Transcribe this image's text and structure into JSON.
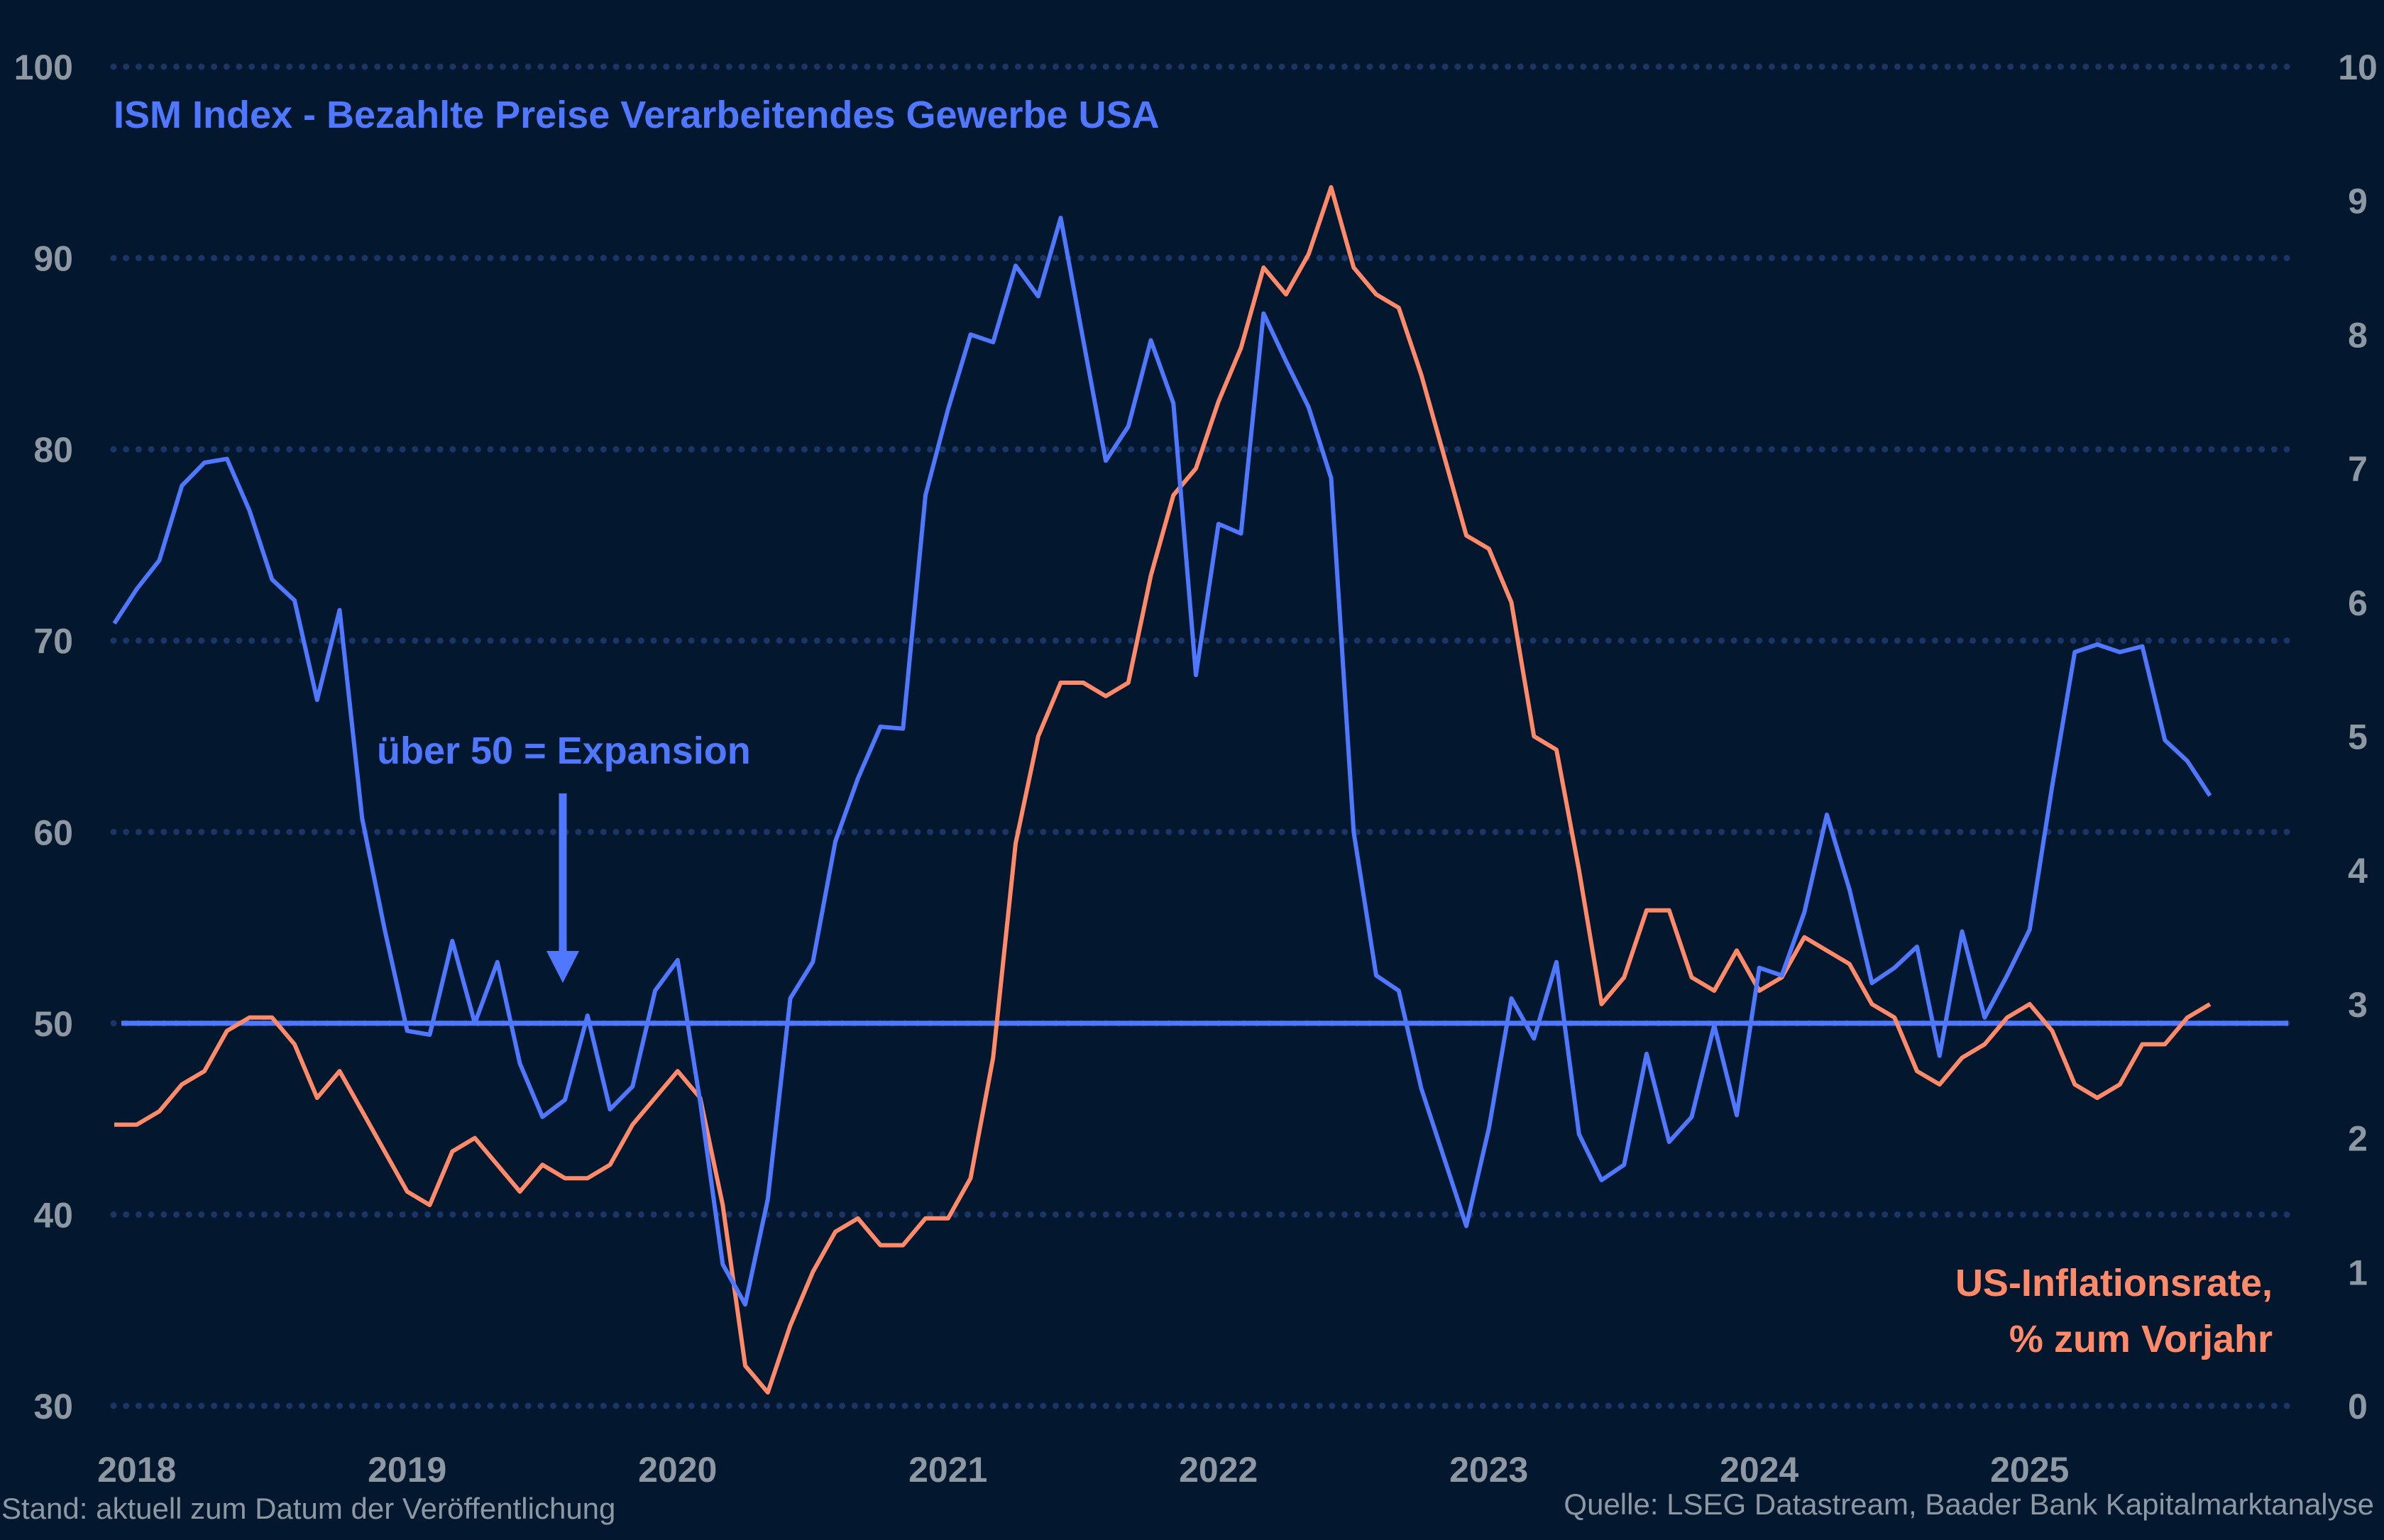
{
  "colors": {
    "background": "#03182f",
    "ism": "#4f78ff",
    "cpi": "#ff8a6a",
    "grid": "#1a3566",
    "ticks": "#8e98a3"
  },
  "title": "ISM Index - Bezahlte Preise Verarbeitendes Gewerbe USA",
  "annotation": "über 50 = Expansion",
  "cpi_label_line1": "US-Inflationsrate,",
  "cpi_label_line2": "% zum Vorjahr",
  "footer_left": "Stand: aktuell zum Datum der Veröffentlichung",
  "footer_right": "Quelle: LSEG Datastream, Baader Bank Kapitalmarktanalyse",
  "chart_data": {
    "type": "line",
    "x_start": "2017-12",
    "x_end": "2025-09",
    "frequency": "monthly",
    "x_tick_labels": [
      "2018",
      "2019",
      "2020",
      "2021",
      "2022",
      "2023",
      "2024",
      "2025"
    ],
    "y_left": {
      "range": [
        30,
        100
      ],
      "ticks": [
        "30",
        "40",
        "50",
        "60",
        "70",
        "80",
        "90",
        "100"
      ]
    },
    "y_right": {
      "range": [
        0,
        10
      ],
      "ticks": [
        "0",
        "1",
        "2",
        "3",
        "4",
        "5",
        "6",
        "7",
        "8",
        "9",
        "10"
      ]
    },
    "grid": "horizontal dotted",
    "reference_line": {
      "axis": "left",
      "value": 50
    },
    "series": [
      {
        "name": "ISM Index - Bezahlte Preise Verarbeitendes Gewerbe USA",
        "axis": "left",
        "values": [
          70.9,
          72.7,
          74.2,
          78.1,
          79.3,
          79.5,
          76.8,
          73.2,
          72.1,
          66.9,
          71.6,
          60.7,
          54.9,
          49.6,
          49.4,
          54.3,
          50.0,
          53.2,
          47.9,
          45.1,
          46.0,
          50.4,
          45.5,
          46.7,
          51.7,
          53.3,
          45.9,
          37.4,
          35.3,
          40.8,
          51.3,
          53.2,
          59.5,
          62.8,
          65.5,
          65.4,
          77.6,
          82.1,
          86.0,
          85.6,
          89.6,
          88.0,
          92.1,
          85.7,
          79.4,
          81.2,
          85.7,
          82.4,
          68.2,
          76.1,
          75.6,
          87.1,
          84.6,
          82.2,
          78.5,
          60.0,
          52.5,
          51.7,
          46.6,
          43.0,
          39.4,
          44.5,
          51.3,
          49.2,
          53.2,
          44.2,
          41.8,
          42.6,
          48.4,
          43.8,
          45.1,
          49.9,
          45.2,
          52.9,
          52.5,
          55.8,
          60.9,
          57.0,
          52.1,
          52.9,
          54.0,
          48.3,
          54.8,
          50.3,
          52.5,
          54.9,
          62.4,
          69.4,
          69.8,
          69.4,
          69.7,
          64.8,
          63.7,
          61.9
        ]
      },
      {
        "name": "US-Inflationsrate, % zum Vorjahr",
        "axis": "right",
        "values": [
          2.1,
          2.1,
          2.2,
          2.4,
          2.5,
          2.8,
          2.9,
          2.9,
          2.7,
          2.3,
          2.5,
          2.2,
          1.9,
          1.6,
          1.5,
          1.9,
          2.0,
          1.8,
          1.6,
          1.8,
          1.7,
          1.7,
          1.8,
          2.1,
          2.3,
          2.5,
          2.3,
          1.5,
          0.3,
          0.1,
          0.6,
          1.0,
          1.3,
          1.4,
          1.2,
          1.2,
          1.4,
          1.4,
          1.7,
          2.6,
          4.2,
          5.0,
          5.4,
          5.4,
          5.3,
          5.4,
          6.2,
          6.8,
          7.0,
          7.5,
          7.9,
          8.5,
          8.3,
          8.6,
          9.1,
          8.5,
          8.3,
          8.2,
          7.7,
          7.1,
          6.5,
          6.4,
          6.0,
          5.0,
          4.9,
          4.0,
          3.0,
          3.2,
          3.7,
          3.7,
          3.2,
          3.1,
          3.4,
          3.1,
          3.2,
          3.5,
          3.4,
          3.3,
          3.0,
          2.9,
          2.5,
          2.4,
          2.6,
          2.7,
          2.9,
          3.0,
          2.8,
          2.4,
          2.3,
          2.4,
          2.7,
          2.7,
          2.9,
          3.0
        ]
      }
    ]
  }
}
